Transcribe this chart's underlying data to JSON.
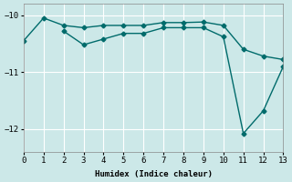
{
  "xlabel": "Humidex (Indice chaleur)",
  "bg_color": "#cce8e8",
  "grid_color": "#ffffff",
  "line_color": "#006b6b",
  "line1_x": [
    0,
    1,
    2,
    3,
    4,
    5,
    6,
    7,
    8,
    9,
    10,
    11,
    12,
    13
  ],
  "line1_y": [
    -10.45,
    -10.05,
    -10.18,
    -10.22,
    -10.18,
    -10.18,
    -10.18,
    -10.13,
    -10.13,
    -10.12,
    -10.18,
    -10.6,
    -10.72,
    -10.78
  ],
  "line2_x": [
    2,
    3,
    4,
    5,
    6,
    7,
    8,
    9,
    10,
    11,
    12,
    13
  ],
  "line2_y": [
    -10.28,
    -10.52,
    -10.42,
    -10.32,
    -10.32,
    -10.22,
    -10.22,
    -10.22,
    -10.38,
    -12.08,
    -11.68,
    -10.9
  ],
  "xlim": [
    0,
    13
  ],
  "ylim": [
    -12.4,
    -9.8
  ],
  "yticks": [
    -12,
    -11,
    -10
  ],
  "xticks": [
    0,
    1,
    2,
    3,
    4,
    5,
    6,
    7,
    8,
    9,
    10,
    11,
    12,
    13
  ],
  "marker": "D",
  "marker_size": 2.5,
  "line_width": 1.0,
  "label_fontsize": 6.5,
  "tick_fontsize": 6.5
}
